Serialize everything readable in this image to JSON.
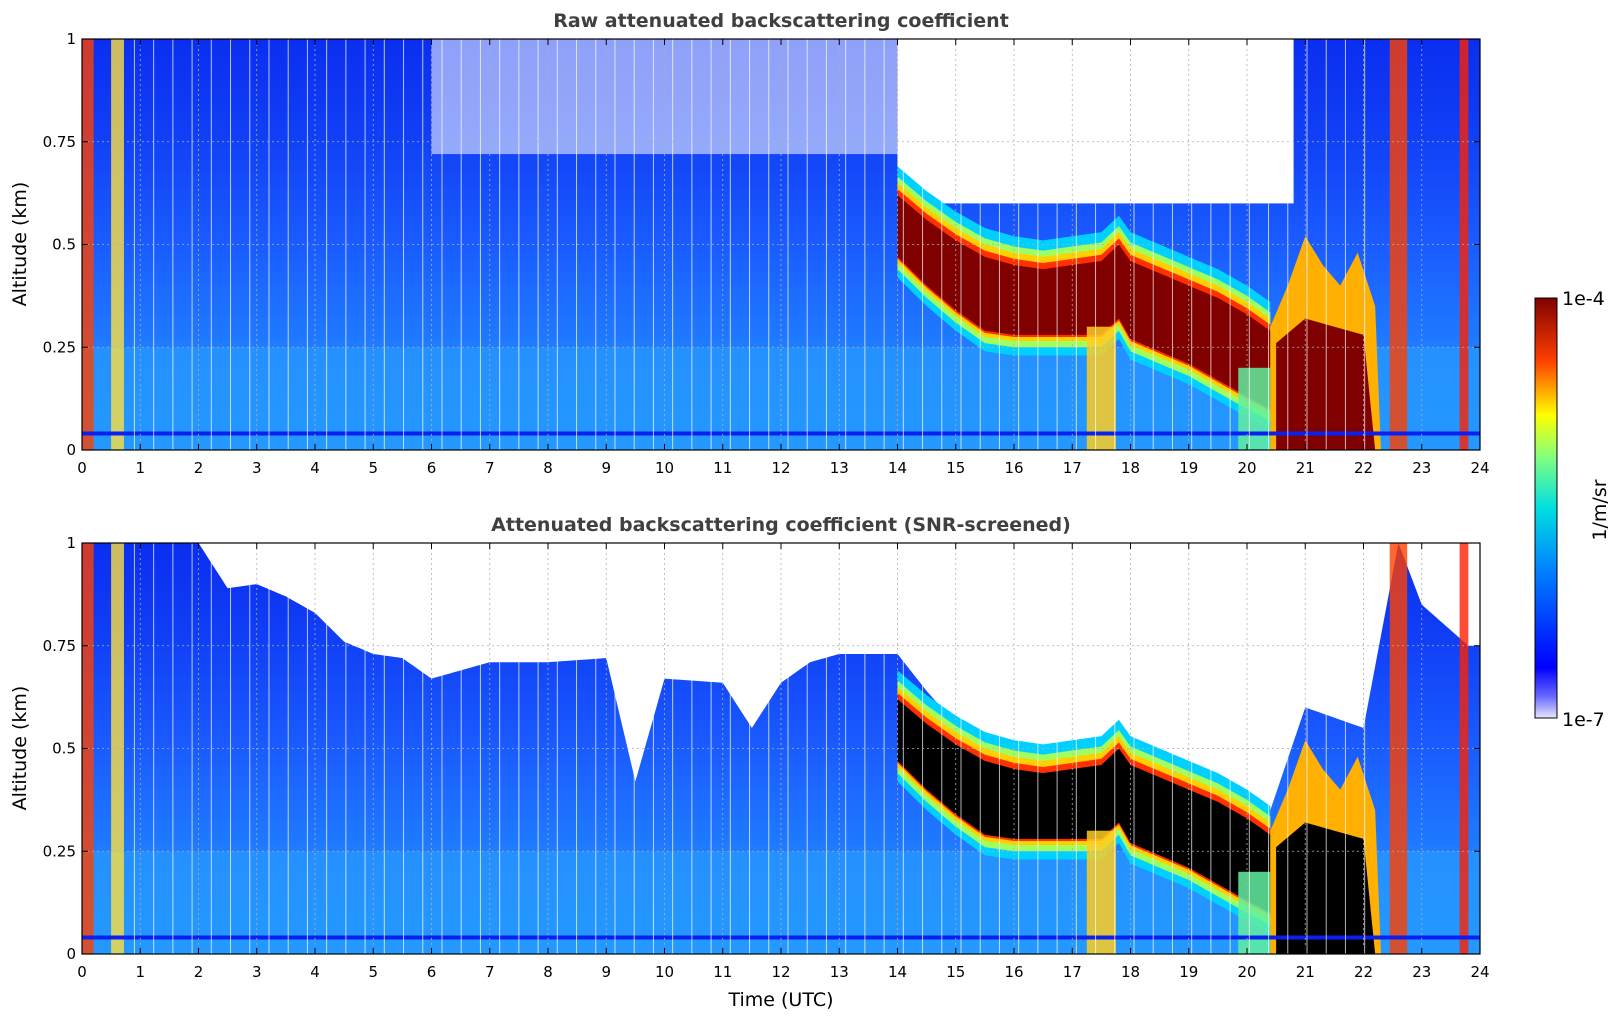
{
  "chart_data": [
    {
      "type": "heatmap",
      "title": "Raw attenuated backscattering coefficient",
      "xlabel": "",
      "ylabel": "Altitude (km)",
      "xlim": [
        0,
        24
      ],
      "ylim": [
        0,
        1
      ],
      "x_ticks": [
        "0",
        "1",
        "2",
        "3",
        "4",
        "5",
        "6",
        "7",
        "8",
        "9",
        "10",
        "11",
        "12",
        "13",
        "14",
        "15",
        "16",
        "17",
        "18",
        "19",
        "20",
        "21",
        "22",
        "23",
        "24"
      ],
      "y_ticks": [
        "0",
        "0.25",
        "0.5",
        "0.75",
        "1"
      ],
      "y_tick_values": [
        0,
        0.25,
        0.5,
        0.75,
        1
      ],
      "grid": true,
      "colormap": "jet",
      "cloud_layer": {
        "x": [
          14.0,
          14.5,
          15.0,
          15.5,
          16.0,
          16.5,
          17.0,
          17.5,
          17.8,
          18.0,
          18.5,
          19.0,
          19.5,
          20.0,
          20.4
        ],
        "top_km": [
          0.62,
          0.56,
          0.51,
          0.47,
          0.45,
          0.44,
          0.45,
          0.46,
          0.5,
          0.46,
          0.43,
          0.4,
          0.37,
          0.33,
          0.29
        ],
        "base_km": [
          0.47,
          0.4,
          0.34,
          0.29,
          0.28,
          0.28,
          0.28,
          0.28,
          0.32,
          0.27,
          0.24,
          0.21,
          0.17,
          0.13,
          0.1
        ]
      },
      "screened": false
    },
    {
      "type": "heatmap",
      "title": "Attenuated backscattering coefficient (SNR-screened)",
      "xlabel": "Time (UTC)",
      "ylabel": "Altitude (km)",
      "xlim": [
        0,
        24
      ],
      "ylim": [
        0,
        1
      ],
      "x_ticks": [
        "0",
        "1",
        "2",
        "3",
        "4",
        "5",
        "6",
        "7",
        "8",
        "9",
        "10",
        "11",
        "12",
        "13",
        "14",
        "15",
        "16",
        "17",
        "18",
        "19",
        "20",
        "21",
        "22",
        "23",
        "24"
      ],
      "y_ticks": [
        "0",
        "0.25",
        "0.5",
        "0.75",
        "1"
      ],
      "y_tick_values": [
        0,
        0.25,
        0.5,
        0.75,
        1
      ],
      "grid": true,
      "colormap": "jet",
      "screen_top": {
        "x": [
          0,
          2.0,
          2.5,
          3.0,
          3.5,
          4.0,
          4.5,
          5.0,
          5.5,
          6.0,
          7.0,
          8.0,
          9.0,
          9.5,
          10.0,
          11.0,
          11.5,
          12.0,
          12.5,
          13.0,
          14.0,
          14.5,
          15.0,
          16.0,
          17.0,
          18.0,
          19.0,
          20.0,
          20.4,
          21.0,
          22.0,
          22.6,
          23.0,
          23.8,
          24.0
        ],
        "y_km": [
          1.0,
          1.0,
          0.89,
          0.9,
          0.87,
          0.83,
          0.76,
          0.73,
          0.72,
          0.67,
          0.71,
          0.71,
          0.72,
          0.42,
          0.67,
          0.66,
          0.55,
          0.66,
          0.71,
          0.73,
          0.73,
          0.64,
          0.56,
          0.5,
          0.49,
          0.52,
          0.45,
          0.38,
          0.35,
          0.6,
          0.55,
          1.0,
          0.85,
          0.75,
          0.75
        ]
      },
      "saturated_color": "#000000",
      "screened": true
    }
  ],
  "colorbar": {
    "max_label": "1e-4",
    "min_label": "1e-7",
    "label": "1/m/sr",
    "scale": "log",
    "range": [
      1e-07,
      0.0001
    ]
  },
  "colors": {
    "background": "#ffffff",
    "title": "#404040",
    "grid": "#b0b0b0",
    "dark_red": "#800000",
    "blue_bg": "#1a66ff"
  }
}
